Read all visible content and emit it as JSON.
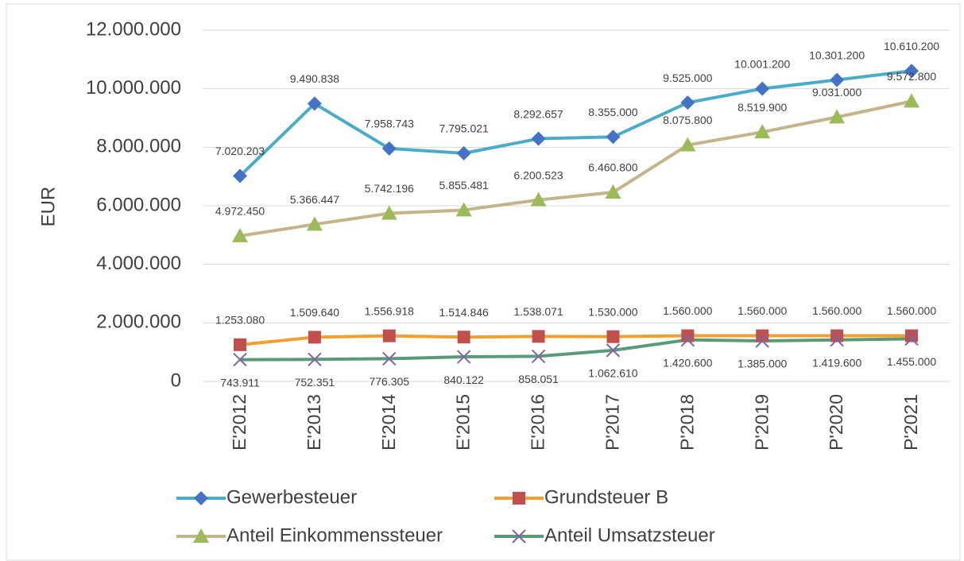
{
  "chart_data": {
    "type": "line",
    "ylabel": "EUR",
    "categories": [
      "E'2012",
      "E'2013",
      "E'2014",
      "E'2015",
      "E'2016",
      "P'2017",
      "P'2018",
      "P'2019",
      "P'2020",
      "P'2021"
    ],
    "ylim": [
      0,
      12000000
    ],
    "yticks": [
      0,
      {
        "value": 2000000,
        "label": "2.000.000"
      },
      {
        "value": 4000000,
        "label": "4.000.000"
      },
      {
        "value": 6000000,
        "label": "6.000.000"
      },
      {
        "value": 8000000,
        "label": "8.000.000"
      },
      {
        "value": 10000000,
        "label": "10.000.000"
      },
      {
        "value": 12000000,
        "label": "12.000.000"
      }
    ],
    "grid": true,
    "legend": "bottom",
    "series": [
      {
        "name": "Gewerbesteuer",
        "color": "#4bacc6",
        "marker": "diamond",
        "marker_color": "#4472c4",
        "values": [
          7020203,
          9490838,
          7958743,
          7795021,
          8292657,
          8355000,
          9525000,
          10001200,
          10301200,
          10610200
        ],
        "value_labels": [
          "7.020.203",
          "9.490.838",
          "7.958.743",
          "7.795.021",
          "8.292.657",
          "8.355.000",
          "9.525.000",
          "10.001.200",
          "10.301.200",
          "10.610.200"
        ]
      },
      {
        "name": "Grundsteuer B",
        "color": "#f0a030",
        "marker": "square",
        "marker_color": "#c0504d",
        "values": [
          1253080,
          1509640,
          1556918,
          1514846,
          1538071,
          1530000,
          1560000,
          1560000,
          1560000,
          1560000
        ],
        "value_labels": [
          "1.253.080",
          "1.509.640",
          "1.556.918",
          "1.514.846",
          "1.538.071",
          "1.530.000",
          "1.560.000",
          "1.560.000",
          "1.560.000",
          "1.560.000"
        ]
      },
      {
        "name": "Anteil Einkommenssteuer",
        "color": "#c4b48a",
        "marker": "triangle",
        "marker_color": "#9bbb59",
        "values": [
          4972450,
          5366447,
          5742196,
          5855481,
          6200523,
          6460800,
          8075800,
          8519900,
          9031000,
          9572800
        ],
        "value_labels": [
          "4.972.450",
          "5.366.447",
          "5.742.196",
          "5.855.481",
          "6.200.523",
          "6.460.800",
          "8.075.800",
          "8.519.900",
          "9.031.000",
          "9.572.800"
        ]
      },
      {
        "name": "Anteil Umsatzsteuer",
        "color": "#5a9a78",
        "marker": "x",
        "marker_color": "#8064a2",
        "values": [
          743911,
          752351,
          776305,
          840122,
          858051,
          1062610,
          1420600,
          1385000,
          1419600,
          1455000
        ],
        "value_labels": [
          "743.911",
          "752.351",
          "776.305",
          "840.122",
          "858.051",
          "1.062.610",
          "1.420.600",
          "1.385.000",
          "1.419.600",
          "1.455.000"
        ]
      }
    ]
  }
}
